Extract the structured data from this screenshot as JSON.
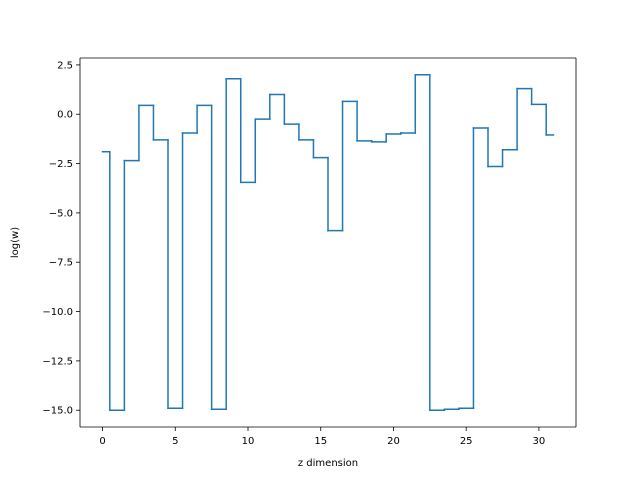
{
  "chart_data": {
    "type": "line",
    "step": "mid",
    "title": "",
    "xlabel": "z dimension",
    "ylabel": "log(w)",
    "xlim": [
      -1.55,
      32.55
    ],
    "ylim": [
      -15.85,
      2.85
    ],
    "xticks": [
      0,
      5,
      10,
      15,
      20,
      25,
      30
    ],
    "xtick_labels": [
      "0",
      "5",
      "10",
      "15",
      "20",
      "25",
      "30"
    ],
    "yticks": [
      2.5,
      0.0,
      -2.5,
      -5.0,
      -7.5,
      -10.0,
      -12.5,
      -15.0
    ],
    "ytick_labels": [
      "2.5",
      "0.0",
      "−2.5",
      "−5.0",
      "−7.5",
      "−10.0",
      "−12.5",
      "−15.0"
    ],
    "grid": false,
    "series": [
      {
        "color": "#1f77b4",
        "x": [
          0,
          1,
          2,
          3,
          4,
          5,
          6,
          7,
          8,
          9,
          10,
          11,
          12,
          13,
          14,
          15,
          16,
          17,
          18,
          19,
          20,
          21,
          22,
          23,
          24,
          25,
          26,
          27,
          28,
          29,
          30,
          31
        ],
        "y": [
          -1.9,
          -15.0,
          -2.35,
          0.45,
          -1.3,
          -14.9,
          -0.95,
          0.45,
          -14.95,
          1.8,
          -3.45,
          -0.25,
          1.0,
          -0.5,
          -1.3,
          -2.2,
          -5.9,
          0.65,
          -1.35,
          -1.4,
          -1.0,
          -0.95,
          2.0,
          -15.0,
          -14.95,
          -14.9,
          -0.7,
          -2.65,
          -1.8,
          1.3,
          0.5,
          -1.05
        ]
      }
    ]
  }
}
